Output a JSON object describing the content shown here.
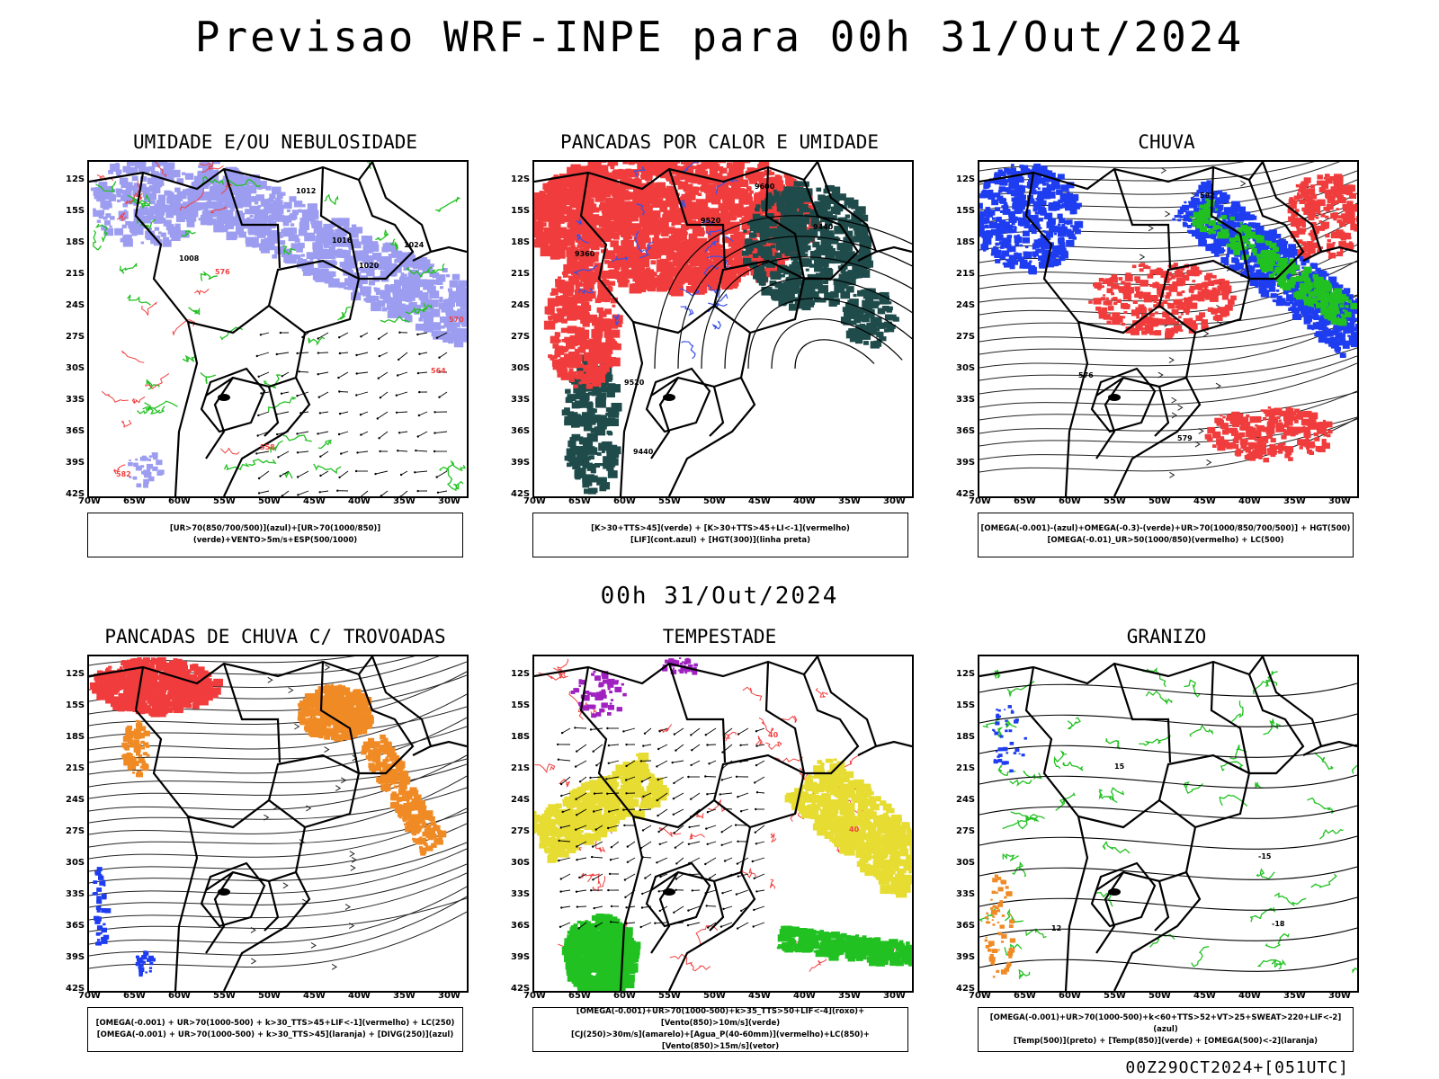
{
  "title": "Previsao WRF-INPE  para 00h 31/Out/2024",
  "mid_time": "00h 31/Out/2024",
  "stamp": "00Z29OCT2024+[051UTC]",
  "lat_labels": [
    "12S",
    "15S",
    "18S",
    "21S",
    "24S",
    "27S",
    "30S",
    "33S",
    "36S",
    "39S",
    "42S"
  ],
  "lon_labels": [
    "70W",
    "65W",
    "60W",
    "55W",
    "50W",
    "45W",
    "40W",
    "35W",
    "30W"
  ],
  "panels": [
    {
      "title": "UMIDADE E/OU NEBULOSIDADE",
      "legend": [
        "[UR>70(850/700/500)](azul)+[UR>70(1000/850)](verde)+VENTO>5m/s+ESP(500/1000)"
      ],
      "contour_labels": [
        "1012",
        "1016",
        "1020",
        "1024",
        "1008",
        "576",
        "570",
        "564",
        "558",
        "582"
      ]
    },
    {
      "title": "PANCADAS POR CALOR E UMIDADE",
      "legend": [
        "[K>30+TTS>45](verde) + [K>30+TTS>45+LI<-1](vermelho)",
        "[LIF](cont.azul) + [HGT(300)](linha preta)"
      ],
      "contour_labels": [
        "9600",
        "9520",
        "9440",
        "9360"
      ]
    },
    {
      "title": "CHUVA",
      "legend": [
        "[OMEGA(-0.001)-(azul)+OMEGA(-0.3)-(verde)+UR>70(1000/850/700/500)] + HGT(500)",
        "[OMEGA(-0.01)_UR>50(1000/850)(vermelho) + LC(500)"
      ],
      "contour_labels": [
        "582",
        "576",
        "579"
      ]
    },
    {
      "title": "PANCADAS DE CHUVA C/ TROVOADAS",
      "legend": [
        "[OMEGA(-0.001) + UR>70(1000-500) + k>30_TTS>45+LIF<-1](vermelho) + LC(250)",
        "[OMEGA(-0.001) + UR>70(1000-500) + k>30_TTS>45](laranja) + [DIVG(250)](azul)"
      ],
      "contour_labels": []
    },
    {
      "title": "TEMPESTADE",
      "legend": [
        "[OMEGA(-0.001)+UR>70(1000-500)+k>35_TTS>50+LIF<-4](roxo)+[Vento(850)>10m/s](verde)",
        "[CJ(250)>30m/s](amarelo)+[Agua_P(40-60mm)](vermelho)+LC(850)+[Vento(850)>15m/s](vetor)"
      ],
      "contour_labels": [
        "40"
      ]
    },
    {
      "title": "GRANIZO",
      "legend": [
        "[OMEGA(-0.001)+UR>70(1000-500)+k<60+TTS>52+VT>25+SWEAT>220+LIF<-2](azul)",
        "[Temp(500)](preto) + [Temp(850)](verde) + [OMEGA(500)<-2](laranja)"
      ],
      "contour_labels": [
        "-18",
        "-15",
        "12",
        "15"
      ]
    }
  ],
  "colors": {
    "humidity_blue": "#9c9cf0",
    "humidity_green": "#22c122",
    "red": "#f03c3c",
    "dark_green": "#1f4b4b",
    "blue": "#1e3cf0",
    "bright_green": "#22c122",
    "orange": "#f08a24",
    "yellow": "#e6dc32",
    "purple": "#a020c0",
    "contour_red": "#f04040"
  }
}
